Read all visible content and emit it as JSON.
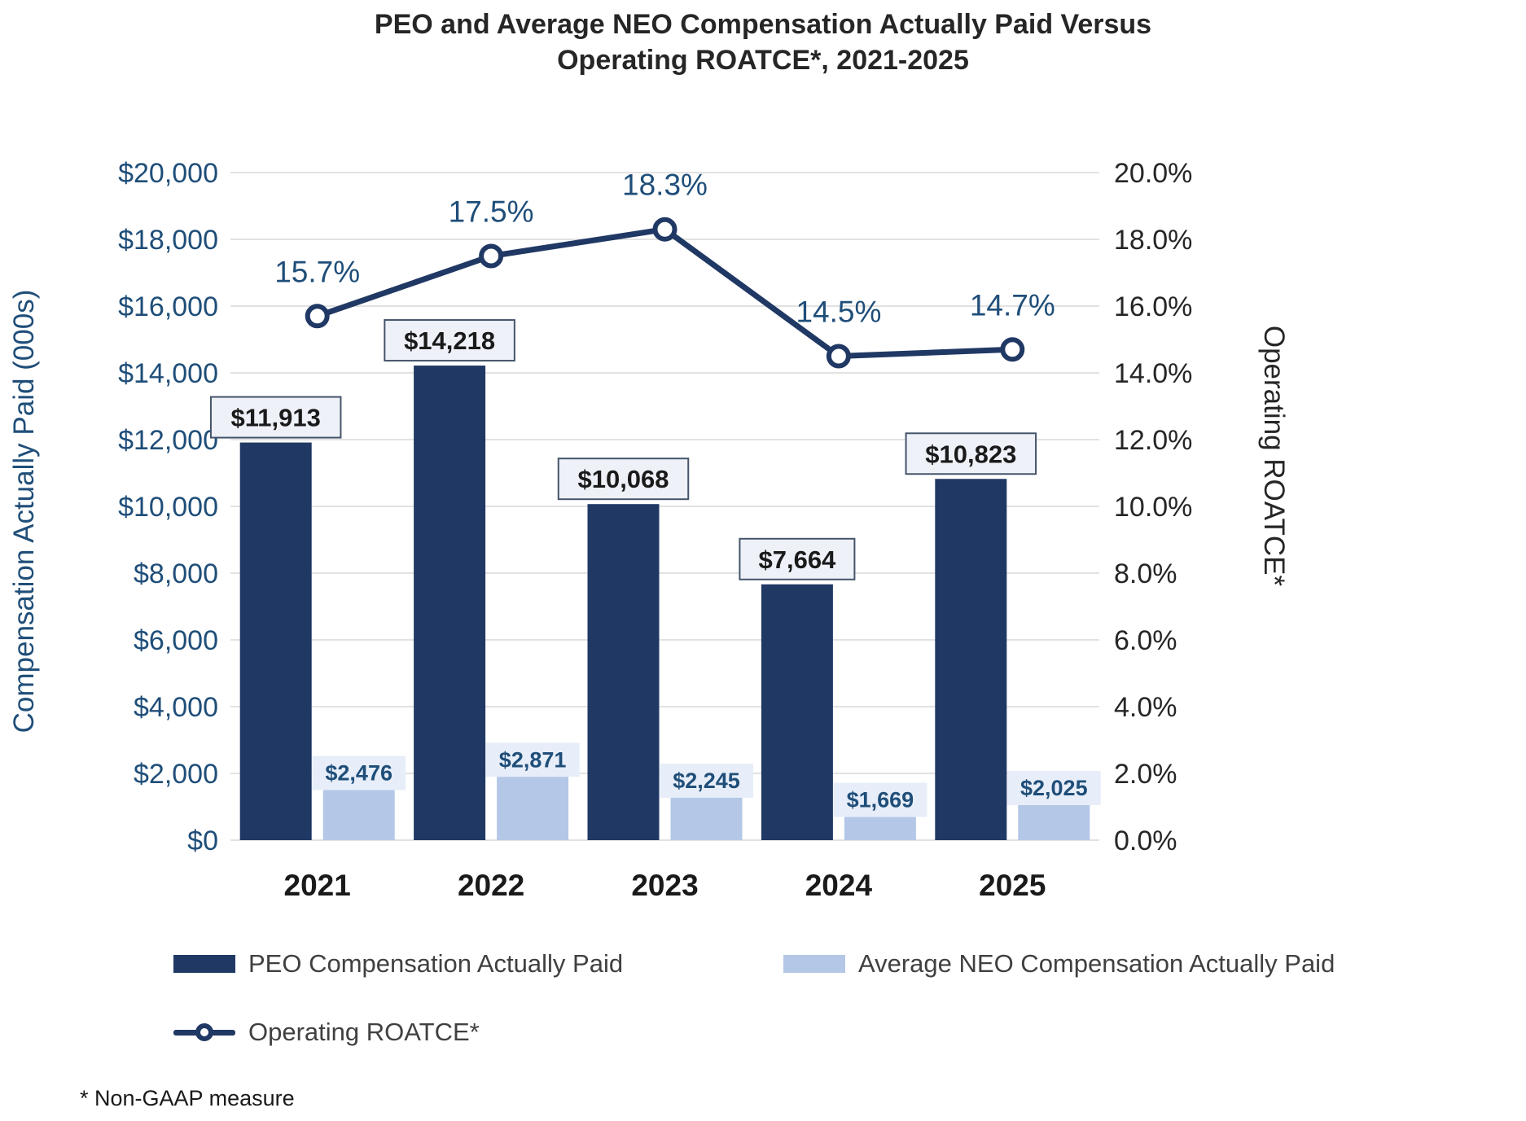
{
  "title": {
    "line1": "PEO and Average NEO Compensation Actually Paid Versus",
    "line2": "Operating ROATCE*, 2021-2025"
  },
  "footnote": "* Non-GAAP measure",
  "colors": {
    "peo_bar": "#203864",
    "neo_bar": "#B4C7E7",
    "line": "#203864",
    "left_axis_text": "#1F4E79",
    "right_axis_text": "#262626",
    "gridline": "#D9D9D9",
    "bar_label_box_bg": "#EEF1F8",
    "bar_label_box_border": "#44546A",
    "bar_label_text": "#1A1A1A",
    "neo_label_bg": "#E7EEF9",
    "neo_label_text": "#1F4E79",
    "pct_label_text": "#1F4E79",
    "year_label_text": "#1A1A1A"
  },
  "chart_data": {
    "type": "bar",
    "subtype": "combo-bar-line",
    "title": "PEO and Average NEO Compensation Actually Paid Versus Operating ROATCE*, 2021-2025",
    "categories": [
      "2021",
      "2022",
      "2023",
      "2024",
      "2025"
    ],
    "series": [
      {
        "name": "PEO Compensation Actually Paid",
        "type": "bar",
        "axis": "left",
        "color": "#203864",
        "values": [
          11913,
          14218,
          10068,
          7664,
          10823
        ],
        "labels": [
          "$11,913",
          "$14,218",
          "$10,068",
          "$7,664",
          "$10,823"
        ]
      },
      {
        "name": "Average NEO Compensation Actually Paid",
        "type": "bar",
        "axis": "left",
        "color": "#B4C7E7",
        "values": [
          2476,
          2871,
          2245,
          1669,
          2025
        ],
        "labels": [
          "$2,476",
          "$2,871",
          "$2,245",
          "$1,669",
          "$2,025"
        ]
      },
      {
        "name": "Operating ROATCE*",
        "type": "line",
        "axis": "right",
        "color": "#203864",
        "values": [
          15.7,
          17.5,
          18.3,
          14.5,
          14.7
        ],
        "labels": [
          "15.7%",
          "17.5%",
          "18.3%",
          "14.5%",
          "14.7%"
        ]
      }
    ],
    "left_axis": {
      "title": "Compensation Actually Paid (000s)",
      "min": 0,
      "max": 20000,
      "step": 2000,
      "tick_labels": [
        "$0",
        "$2,000",
        "$4,000",
        "$6,000",
        "$8,000",
        "$10,000",
        "$12,000",
        "$14,000",
        "$16,000",
        "$18,000",
        "$20,000"
      ]
    },
    "right_axis": {
      "title": "Operating ROATCE*",
      "min": 0,
      "max": 20,
      "step": 2,
      "tick_labels": [
        "0.0%",
        "2.0%",
        "4.0%",
        "6.0%",
        "8.0%",
        "10.0%",
        "12.0%",
        "14.0%",
        "16.0%",
        "18.0%",
        "20.0%"
      ]
    },
    "grid": true,
    "legend_position": "bottom"
  }
}
